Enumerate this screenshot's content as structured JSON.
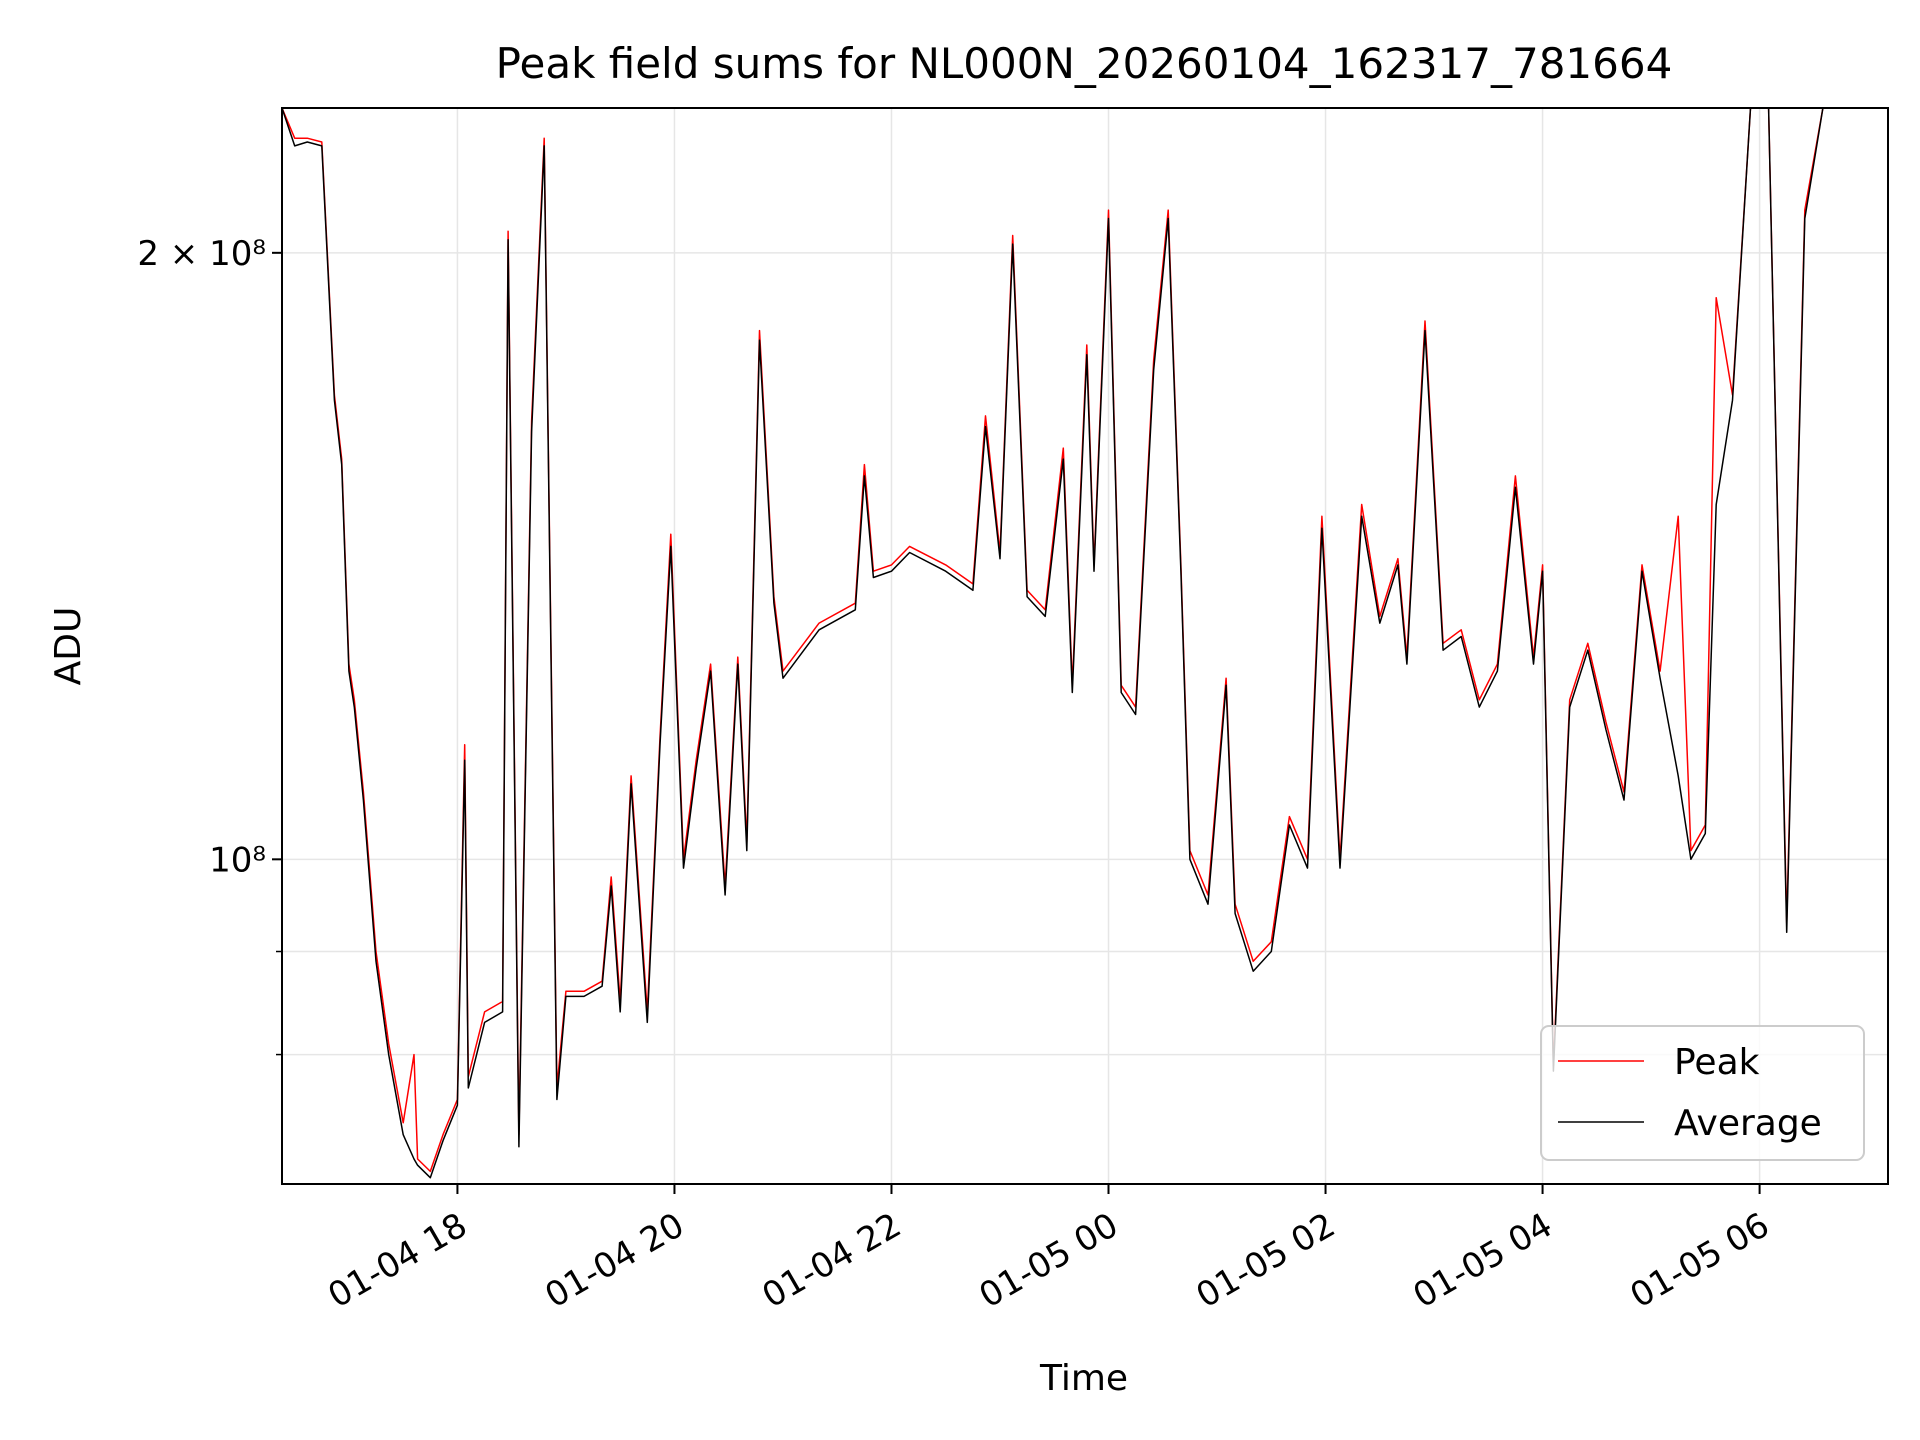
{
  "chart_data": {
    "type": "line",
    "title": "Peak field sums for NL000N_20260104_162317_781664",
    "xlabel": "Time",
    "ylabel": "ADU",
    "yscale": "log",
    "grid": true,
    "legend_position": "lower-right",
    "xlim": [
      "2026-01-04 16:23",
      "2026-01-05 07:11"
    ],
    "ylim": [
      69000000,
      236000000
    ],
    "x_ticks": [
      {
        "t": "2026-01-04 18:00",
        "label": "01-04 18"
      },
      {
        "t": "2026-01-04 20:00",
        "label": "01-04 20"
      },
      {
        "t": "2026-01-04 22:00",
        "label": "01-04 22"
      },
      {
        "t": "2026-01-05 00:00",
        "label": "01-05 00"
      },
      {
        "t": "2026-01-05 02:00",
        "label": "01-05 02"
      },
      {
        "t": "2026-01-05 04:00",
        "label": "01-05 04"
      },
      {
        "t": "2026-01-05 06:00",
        "label": "01-05 06"
      }
    ],
    "y_ticks": [
      {
        "v": 100000000,
        "label": "10⁸"
      },
      {
        "v": 200000000,
        "label": "2 × 10⁸"
      }
    ],
    "y_minor_ticks": [
      80000000,
      90000000
    ],
    "series": [
      {
        "name": "Peak",
        "color": "#ff0000",
        "points": [
          [
            "2026-01-04 16:23",
            236000000
          ],
          [
            "2026-01-04 16:30",
            228000000
          ],
          [
            "2026-01-04 16:37",
            228000000
          ],
          [
            "2026-01-04 16:45",
            227000000
          ],
          [
            "2026-01-04 16:52",
            170000000
          ],
          [
            "2026-01-04 16:56",
            158000000
          ],
          [
            "2026-01-04 17:00",
            125000000
          ],
          [
            "2026-01-04 17:03",
            120000000
          ],
          [
            "2026-01-04 17:08",
            108000000
          ],
          [
            "2026-01-04 17:15",
            90000000
          ],
          [
            "2026-01-04 17:22",
            81000000
          ],
          [
            "2026-01-04 17:30",
            74000000
          ],
          [
            "2026-01-04 17:36",
            80000000
          ],
          [
            "2026-01-04 17:38",
            71000000
          ],
          [
            "2026-01-04 17:45",
            70000000
          ],
          [
            "2026-01-04 17:52",
            73000000
          ],
          [
            "2026-01-04 18:00",
            76000000
          ],
          [
            "2026-01-04 18:04",
            114000000
          ],
          [
            "2026-01-04 18:06",
            78000000
          ],
          [
            "2026-01-04 18:15",
            84000000
          ],
          [
            "2026-01-04 18:25",
            85000000
          ],
          [
            "2026-01-04 18:28",
            205000000
          ],
          [
            "2026-01-04 18:34",
            73000000
          ],
          [
            "2026-01-04 18:41",
            165000000
          ],
          [
            "2026-01-04 18:48",
            228000000
          ],
          [
            "2026-01-04 18:55",
            77000000
          ],
          [
            "2026-01-04 19:00",
            86000000
          ],
          [
            "2026-01-04 19:10",
            86000000
          ],
          [
            "2026-01-04 19:20",
            87000000
          ],
          [
            "2026-01-04 19:25",
            98000000
          ],
          [
            "2026-01-04 19:30",
            85000000
          ],
          [
            "2026-01-04 19:36",
            110000000
          ],
          [
            "2026-01-04 19:45",
            84000000
          ],
          [
            "2026-01-04 19:52",
            115000000
          ],
          [
            "2026-01-04 19:58",
            145000000
          ],
          [
            "2026-01-04 20:05",
            100000000
          ],
          [
            "2026-01-04 20:12",
            112000000
          ],
          [
            "2026-01-04 20:20",
            125000000
          ],
          [
            "2026-01-04 20:28",
            97000000
          ],
          [
            "2026-01-04 20:35",
            126000000
          ],
          [
            "2026-01-04 20:40",
            102000000
          ],
          [
            "2026-01-04 20:47",
            183000000
          ],
          [
            "2026-01-04 20:55",
            135000000
          ],
          [
            "2026-01-04 21:00",
            124000000
          ],
          [
            "2026-01-04 21:20",
            131000000
          ],
          [
            "2026-01-04 21:40",
            134000000
          ],
          [
            "2026-01-04 21:45",
            157000000
          ],
          [
            "2026-01-04 21:50",
            139000000
          ],
          [
            "2026-01-04 22:00",
            140000000
          ],
          [
            "2026-01-04 22:10",
            143000000
          ],
          [
            "2026-01-04 22:30",
            140000000
          ],
          [
            "2026-01-04 22:45",
            137000000
          ],
          [
            "2026-01-04 22:52",
            166000000
          ],
          [
            "2026-01-04 23:00",
            142000000
          ],
          [
            "2026-01-04 23:07",
            204000000
          ],
          [
            "2026-01-04 23:15",
            136000000
          ],
          [
            "2026-01-04 23:25",
            133000000
          ],
          [
            "2026-01-04 23:35",
            160000000
          ],
          [
            "2026-01-04 23:40",
            122000000
          ],
          [
            "2026-01-04 23:48",
            180000000
          ],
          [
            "2026-01-04 23:52",
            140000000
          ],
          [
            "2026-01-05 00:00",
            210000000
          ],
          [
            "2026-01-05 00:07",
            122000000
          ],
          [
            "2026-01-05 00:15",
            119000000
          ],
          [
            "2026-01-05 00:25",
            177000000
          ],
          [
            "2026-01-05 00:33",
            210000000
          ],
          [
            "2026-01-05 00:40",
            140000000
          ],
          [
            "2026-01-05 00:45",
            101000000
          ],
          [
            "2026-01-05 00:55",
            96000000
          ],
          [
            "2026-01-05 01:05",
            123000000
          ],
          [
            "2026-01-05 01:10",
            95000000
          ],
          [
            "2026-01-05 01:20",
            89000000
          ],
          [
            "2026-01-05 01:30",
            91000000
          ],
          [
            "2026-01-05 01:40",
            105000000
          ],
          [
            "2026-01-05 01:50",
            100000000
          ],
          [
            "2026-01-05 01:58",
            148000000
          ],
          [
            "2026-01-05 02:08",
            100000000
          ],
          [
            "2026-01-05 02:20",
            150000000
          ],
          [
            "2026-01-05 02:30",
            132000000
          ],
          [
            "2026-01-05 02:40",
            141000000
          ],
          [
            "2026-01-05 02:45",
            126000000
          ],
          [
            "2026-01-05 02:55",
            185000000
          ],
          [
            "2026-01-05 03:05",
            128000000
          ],
          [
            "2026-01-05 03:15",
            130000000
          ],
          [
            "2026-01-05 03:25",
            120000000
          ],
          [
            "2026-01-05 03:35",
            125000000
          ],
          [
            "2026-01-05 03:45",
            155000000
          ],
          [
            "2026-01-05 03:55",
            126000000
          ],
          [
            "2026-01-05 04:00",
            140000000
          ],
          [
            "2026-01-05 04:06",
            79000000
          ],
          [
            "2026-01-05 04:15",
            120000000
          ],
          [
            "2026-01-05 04:25",
            128000000
          ],
          [
            "2026-01-05 04:35",
            117000000
          ],
          [
            "2026-01-05 04:45",
            108000000
          ],
          [
            "2026-01-05 04:55",
            140000000
          ],
          [
            "2026-01-05 05:05",
            124000000
          ],
          [
            "2026-01-05 05:15",
            148000000
          ],
          [
            "2026-01-05 05:22",
            101000000
          ],
          [
            "2026-01-05 05:30",
            104000000
          ],
          [
            "2026-01-05 05:36",
            190000000
          ],
          [
            "2026-01-05 05:45",
            170000000
          ],
          [
            "2026-01-05 05:55",
            236000000
          ],
          [
            "2026-01-05 06:05",
            236000000
          ],
          [
            "2026-01-05 06:15",
            93000000
          ],
          [
            "2026-01-05 06:25",
            210000000
          ],
          [
            "2026-01-05 06:35",
            236000000
          ],
          [
            "2026-01-05 06:45",
            236000000
          ]
        ]
      },
      {
        "name": "Average",
        "color": "#000000",
        "points": [
          [
            "2026-01-04 16:23",
            236000000
          ],
          [
            "2026-01-04 16:30",
            226000000
          ],
          [
            "2026-01-04 16:37",
            227000000
          ],
          [
            "2026-01-04 16:45",
            226000000
          ],
          [
            "2026-01-04 16:52",
            169000000
          ],
          [
            "2026-01-04 16:56",
            157000000
          ],
          [
            "2026-01-04 17:00",
            124000000
          ],
          [
            "2026-01-04 17:03",
            119000000
          ],
          [
            "2026-01-04 17:08",
            107000000
          ],
          [
            "2026-01-04 17:15",
            89000000
          ],
          [
            "2026-01-04 17:22",
            80000000
          ],
          [
            "2026-01-04 17:30",
            73000000
          ],
          [
            "2026-01-04 17:36",
            71000000
          ],
          [
            "2026-01-04 17:38",
            70500000
          ],
          [
            "2026-01-04 17:45",
            69500000
          ],
          [
            "2026-01-04 17:52",
            72500000
          ],
          [
            "2026-01-04 18:00",
            75500000
          ],
          [
            "2026-01-04 18:04",
            112000000
          ],
          [
            "2026-01-04 18:06",
            77000000
          ],
          [
            "2026-01-04 18:15",
            83000000
          ],
          [
            "2026-01-04 18:25",
            84000000
          ],
          [
            "2026-01-04 18:28",
            203000000
          ],
          [
            "2026-01-04 18:34",
            72000000
          ],
          [
            "2026-01-04 18:41",
            163000000
          ],
          [
            "2026-01-04 18:48",
            226000000
          ],
          [
            "2026-01-04 18:55",
            76000000
          ],
          [
            "2026-01-04 19:00",
            85500000
          ],
          [
            "2026-01-04 19:10",
            85500000
          ],
          [
            "2026-01-04 19:20",
            86500000
          ],
          [
            "2026-01-04 19:25",
            97000000
          ],
          [
            "2026-01-04 19:30",
            84000000
          ],
          [
            "2026-01-04 19:36",
            109000000
          ],
          [
            "2026-01-04 19:45",
            83000000
          ],
          [
            "2026-01-04 19:52",
            114000000
          ],
          [
            "2026-01-04 19:58",
            143000000
          ],
          [
            "2026-01-04 20:05",
            99000000
          ],
          [
            "2026-01-04 20:12",
            111000000
          ],
          [
            "2026-01-04 20:20",
            124000000
          ],
          [
            "2026-01-04 20:28",
            96000000
          ],
          [
            "2026-01-04 20:35",
            125000000
          ],
          [
            "2026-01-04 20:40",
            101000000
          ],
          [
            "2026-01-04 20:47",
            181000000
          ],
          [
            "2026-01-04 20:55",
            134000000
          ],
          [
            "2026-01-04 21:00",
            123000000
          ],
          [
            "2026-01-04 21:20",
            130000000
          ],
          [
            "2026-01-04 21:40",
            133000000
          ],
          [
            "2026-01-04 21:45",
            155000000
          ],
          [
            "2026-01-04 21:50",
            138000000
          ],
          [
            "2026-01-04 22:00",
            139000000
          ],
          [
            "2026-01-04 22:10",
            142000000
          ],
          [
            "2026-01-04 22:30",
            139000000
          ],
          [
            "2026-01-04 22:45",
            136000000
          ],
          [
            "2026-01-04 22:52",
            164000000
          ],
          [
            "2026-01-04 23:00",
            141000000
          ],
          [
            "2026-01-04 23:07",
            202000000
          ],
          [
            "2026-01-04 23:15",
            135000000
          ],
          [
            "2026-01-04 23:25",
            132000000
          ],
          [
            "2026-01-04 23:35",
            158000000
          ],
          [
            "2026-01-04 23:40",
            121000000
          ],
          [
            "2026-01-04 23:48",
            178000000
          ],
          [
            "2026-01-04 23:52",
            139000000
          ],
          [
            "2026-01-05 00:00",
            208000000
          ],
          [
            "2026-01-05 00:07",
            121000000
          ],
          [
            "2026-01-05 00:15",
            118000000
          ],
          [
            "2026-01-05 00:25",
            175000000
          ],
          [
            "2026-01-05 00:33",
            208000000
          ],
          [
            "2026-01-05 00:40",
            139000000
          ],
          [
            "2026-01-05 00:45",
            100000000
          ],
          [
            "2026-01-05 00:55",
            95000000
          ],
          [
            "2026-01-05 01:05",
            122000000
          ],
          [
            "2026-01-05 01:10",
            94000000
          ],
          [
            "2026-01-05 01:20",
            88000000
          ],
          [
            "2026-01-05 01:30",
            90000000
          ],
          [
            "2026-01-05 01:40",
            104000000
          ],
          [
            "2026-01-05 01:50",
            99000000
          ],
          [
            "2026-01-05 01:58",
            146000000
          ],
          [
            "2026-01-05 02:08",
            99000000
          ],
          [
            "2026-01-05 02:20",
            148000000
          ],
          [
            "2026-01-05 02:30",
            131000000
          ],
          [
            "2026-01-05 02:40",
            140000000
          ],
          [
            "2026-01-05 02:45",
            125000000
          ],
          [
            "2026-01-05 02:55",
            183000000
          ],
          [
            "2026-01-05 03:05",
            127000000
          ],
          [
            "2026-01-05 03:15",
            129000000
          ],
          [
            "2026-01-05 03:25",
            119000000
          ],
          [
            "2026-01-05 03:35",
            124000000
          ],
          [
            "2026-01-05 03:45",
            153000000
          ],
          [
            "2026-01-05 03:55",
            125000000
          ],
          [
            "2026-01-05 04:00",
            139000000
          ],
          [
            "2026-01-05 04:06",
            78500000
          ],
          [
            "2026-01-05 04:15",
            119000000
          ],
          [
            "2026-01-05 04:25",
            127000000
          ],
          [
            "2026-01-05 04:35",
            116000000
          ],
          [
            "2026-01-05 04:45",
            107000000
          ],
          [
            "2026-01-05 04:55",
            139000000
          ],
          [
            "2026-01-05 05:05",
            123000000
          ],
          [
            "2026-01-05 05:15",
            110000000
          ],
          [
            "2026-01-05 05:22",
            100000000
          ],
          [
            "2026-01-05 05:30",
            103000000
          ],
          [
            "2026-01-05 05:36",
            150000000
          ],
          [
            "2026-01-05 05:45",
            169000000
          ],
          [
            "2026-01-05 05:55",
            236000000
          ],
          [
            "2026-01-05 06:05",
            236000000
          ],
          [
            "2026-01-05 06:15",
            92000000
          ],
          [
            "2026-01-05 06:25",
            208000000
          ],
          [
            "2026-01-05 06:35",
            236000000
          ],
          [
            "2026-01-05 06:45",
            236000000
          ]
        ]
      }
    ]
  }
}
